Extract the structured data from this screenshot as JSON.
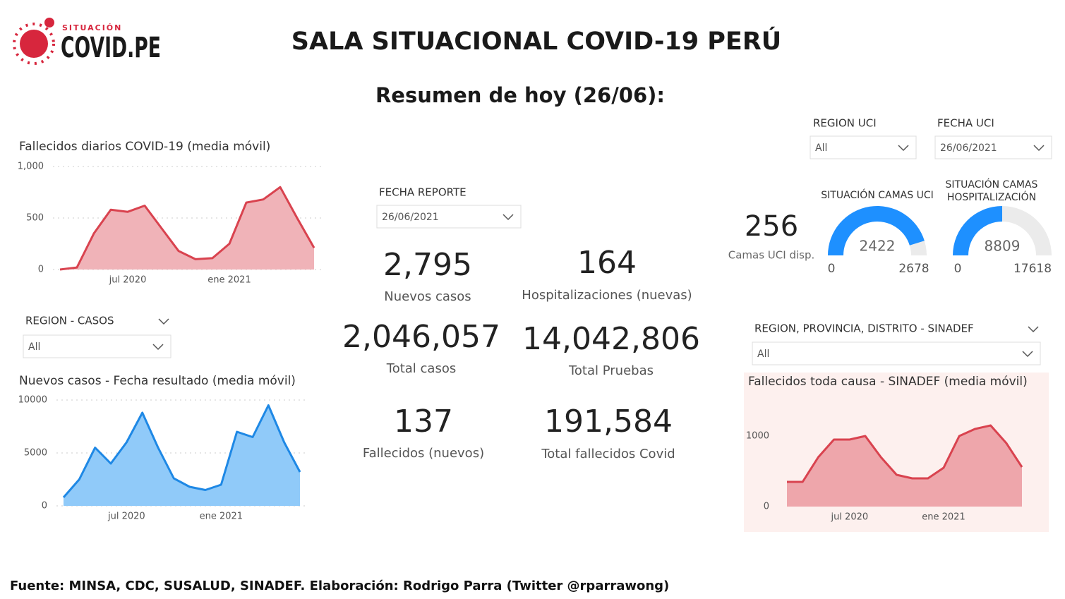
{
  "header": {
    "logo_small": "SITUACIÓN",
    "logo_big": "COVID.PE",
    "title": "SALA SITUACIONAL COVID-19 PERÚ",
    "subtitle": "Resumen de hoy (26/06):"
  },
  "filters": [
    {
      "label": "REGION UCI",
      "value": "All"
    },
    {
      "label": "FECHA UCI",
      "value": "26/06/2021"
    },
    {
      "label": "FECHA REPORTE",
      "value": "26/06/2021"
    },
    {
      "label": "REGION - CASOS",
      "value": "All"
    },
    {
      "label": "REGION, PROVINCIA, DISTRITO - SINADEF",
      "value": "All"
    }
  ],
  "kpis": [
    {
      "value": "2,795",
      "label": "Nuevos casos"
    },
    {
      "value": "164",
      "label": "Hospitalizaciones (nuevas)"
    },
    {
      "value": "2,046,057",
      "label": "Total casos"
    },
    {
      "value": "14,042,806",
      "label": "Total Pruebas"
    },
    {
      "value": "137",
      "label": "Fallecidos (nuevos)"
    },
    {
      "value": "191,584",
      "label": "Total fallecidos Covid"
    }
  ],
  "uci_available": {
    "value": "256",
    "label": "Camas UCI disp."
  },
  "footer": "Fuente: MINSA, CDC, SUSALUD, SINADEF. Elaboración: Rodrigo Parra (Twitter @rparrawong)",
  "chart_data": [
    {
      "type": "area",
      "title": "Fallecidos diarios COVID-19 (media móvil)",
      "color": "#d9434f",
      "fill": "#f0b3b8",
      "categories": [
        "2020-03",
        "2020-04",
        "2020-05",
        "2020-06",
        "2020-07",
        "2020-08",
        "2020-09",
        "2020-10",
        "2020-11",
        "2020-12",
        "2021-01",
        "2021-02",
        "2021-03",
        "2021-04",
        "2021-05",
        "2021-06"
      ],
      "values": [
        0,
        20,
        350,
        580,
        560,
        620,
        400,
        180,
        100,
        110,
        250,
        650,
        680,
        800,
        500,
        210
      ],
      "xticks": [
        {
          "value": "2020-07",
          "label": "jul 2020"
        },
        {
          "value": "2021-01",
          "label": "ene 2021"
        }
      ],
      "ylim": [
        0,
        1000
      ],
      "yticks": [
        0,
        500,
        {
          "value": 1000,
          "label": "1,000"
        }
      ],
      "grid": true
    },
    {
      "type": "area",
      "title": "Nuevos casos - Fecha resultado (media móvil)",
      "color": "#1e88e5",
      "fill": "#90caf9",
      "categories": [
        "2020-03",
        "2020-04",
        "2020-05",
        "2020-06",
        "2020-07",
        "2020-08",
        "2020-09",
        "2020-10",
        "2020-11",
        "2020-12",
        "2021-01",
        "2021-02",
        "2021-03",
        "2021-04",
        "2021-05",
        "2021-06"
      ],
      "values": [
        800,
        2500,
        5500,
        4000,
        6000,
        8800,
        5500,
        2600,
        1800,
        1500,
        2000,
        7000,
        6500,
        9500,
        6000,
        3200
      ],
      "xticks": [
        {
          "value": "2020-07",
          "label": "jul 2020"
        },
        {
          "value": "2021-01",
          "label": "ene 2021"
        }
      ],
      "ylim": [
        0,
        10000
      ],
      "yticks": [
        0,
        5000,
        10000
      ],
      "grid": true
    },
    {
      "type": "area",
      "title": "Fallecidos toda causa - SINADEF (media móvil)",
      "color": "#d9434f",
      "fill": "#eea6ab",
      "categories": [
        "2020-03",
        "2020-04",
        "2020-05",
        "2020-06",
        "2020-07",
        "2020-08",
        "2020-09",
        "2020-10",
        "2020-11",
        "2020-12",
        "2021-01",
        "2021-02",
        "2021-03",
        "2021-04",
        "2021-05",
        "2021-06"
      ],
      "values": [
        350,
        350,
        700,
        950,
        950,
        1000,
        700,
        450,
        400,
        400,
        550,
        1000,
        1100,
        1150,
        900,
        560
      ],
      "xticks": [
        {
          "value": "2020-07",
          "label": "jul 2020"
        },
        {
          "value": "2021-01",
          "label": "ene 2021"
        }
      ],
      "ylim": [
        0,
        1500
      ],
      "yticks": [
        0,
        1000
      ],
      "grid": false
    },
    {
      "type": "gauge",
      "title": [
        "SITUACIÓN CAMAS UCI"
      ],
      "value": 2422,
      "min": 0,
      "max": 2678,
      "color": "#1e90ff"
    },
    {
      "type": "gauge",
      "title": [
        "SITUACIÓN CAMAS",
        "HOSPITALIZACIÓN"
      ],
      "value": 8809,
      "min": 0,
      "max": 17618,
      "color": "#1e90ff"
    }
  ]
}
